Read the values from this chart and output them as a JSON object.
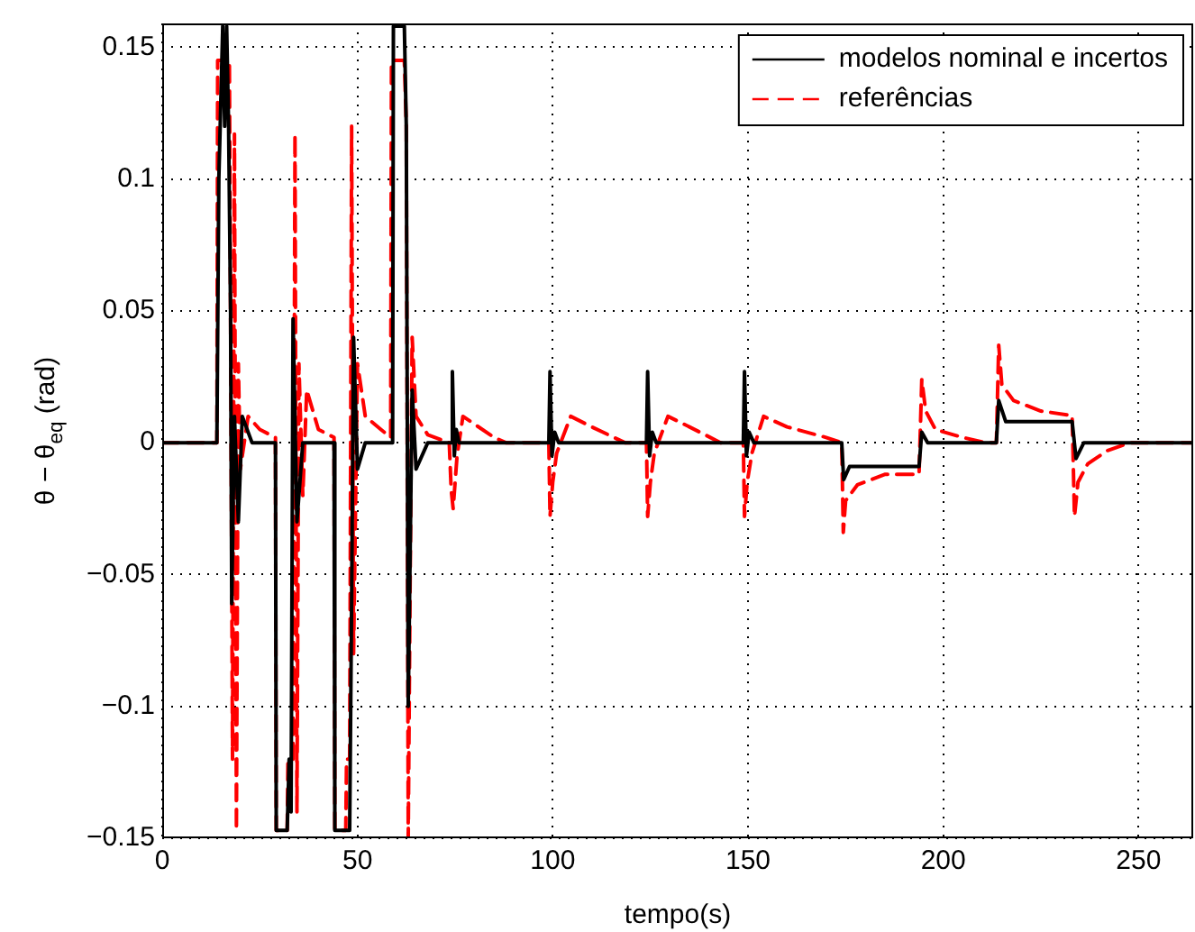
{
  "chart_data": {
    "type": "line",
    "xlabel": "tempo(s)",
    "ylabel": "θ − θ$_{eq}$ (rad)",
    "xlim": [
      0,
      264
    ],
    "ylim": [
      -0.15,
      0.159
    ],
    "xticks": [
      0,
      50,
      100,
      150,
      200,
      250
    ],
    "yticks": [
      {
        "value": -0.15,
        "label": "−0.15"
      },
      {
        "value": -0.1,
        "label": "−0.1"
      },
      {
        "value": -0.05,
        "label": "−0.05"
      },
      0,
      0.05,
      0.1,
      0.15
    ],
    "grid": true,
    "legend": "top right",
    "marker": "none",
    "series": [
      {
        "name": "modelos nominal e incertos",
        "color": "#000000",
        "line_style": "solid",
        "x": [
          0,
          14,
          14.5,
          15.5,
          16,
          16.5,
          17,
          17.5,
          17.8,
          18.5,
          19.5,
          20.5,
          23,
          29,
          29.2,
          32,
          32.5,
          33,
          33.5,
          34.5,
          36,
          44,
          44.2,
          48,
          48.5,
          49,
          50,
          52,
          59,
          59.2,
          62,
          62.5,
          63,
          64,
          65,
          68,
          74,
          74.3,
          74.8,
          75.3,
          76,
          99,
          99.3,
          99.8,
          100.5,
          101.5,
          124,
          124.3,
          124.8,
          125.5,
          126.5,
          148.8,
          149.1,
          149.6,
          150.3,
          151.5,
          174,
          174.5,
          176,
          193.8,
          194.5,
          196,
          213.6,
          214.2,
          216,
          233,
          234,
          236,
          264
        ],
        "values": [
          0,
          0,
          0.1,
          0.158,
          0.12,
          0.158,
          0.12,
          0.05,
          -0.061,
          0.01,
          -0.03,
          0.01,
          0,
          0,
          -0.147,
          -0.147,
          -0.12,
          -0.14,
          0.047,
          -0.03,
          0,
          0,
          -0.147,
          -0.147,
          -0.06,
          0.04,
          -0.01,
          0,
          0,
          0.158,
          0.158,
          0.12,
          -0.1,
          0.02,
          -0.01,
          0,
          0,
          0.027,
          -0.005,
          0.005,
          0,
          0,
          0.027,
          -0.005,
          0.004,
          0,
          0,
          0.027,
          -0.005,
          0.004,
          0,
          0,
          0.027,
          -0.005,
          0.004,
          0,
          0,
          -0.014,
          -0.009,
          -0.009,
          0.004,
          0,
          0,
          0.016,
          0.008,
          0.008,
          -0.006,
          0,
          0
        ]
      },
      {
        "name": "referências",
        "color": "#ff0000",
        "line_style": "dashed",
        "x": [
          0,
          14,
          14.2,
          17.2,
          17.5,
          18,
          18.5,
          19,
          19.5,
          20,
          22,
          25,
          29,
          29.2,
          32,
          32.2,
          33.5,
          34,
          34.5,
          35,
          36,
          37,
          40,
          44,
          44.2,
          47,
          47.2,
          48,
          48.5,
          49,
          50,
          52,
          56,
          58.5,
          58.7,
          62,
          62.5,
          63,
          63.5,
          64,
          65,
          68,
          73.5,
          74,
          74.5,
          75.5,
          77,
          80,
          85,
          88,
          99,
          99.3,
          100,
          101,
          104.6,
          110,
          118.5,
          124,
          124.3,
          125,
          126,
          129.5,
          135,
          143,
          148.8,
          149.1,
          149.8,
          151,
          154,
          160,
          170,
          174,
          174.4,
          175,
          178,
          185,
          193.8,
          194.5,
          195.5,
          198,
          205,
          210.7,
          213.6,
          214.2,
          215,
          218,
          225,
          233,
          233.6,
          234.5,
          237,
          242,
          247.7,
          264
        ],
        "values": [
          0,
          0,
          0.145,
          0.145,
          0.05,
          -0.12,
          0.117,
          -0.147,
          0.03,
          -0.01,
          0.01,
          0.005,
          0.002,
          -0.147,
          -0.147,
          -0.12,
          -0.12,
          0.117,
          -0.14,
          0.03,
          -0.02,
          0.02,
          0.005,
          0.002,
          -0.147,
          -0.147,
          -0.12,
          -0.12,
          0.12,
          -0.08,
          0.03,
          0.01,
          0.005,
          0.002,
          0.145,
          0.145,
          0.12,
          -0.15,
          -0.05,
          0.04,
          0.01,
          0.003,
          0,
          -0.018,
          -0.025,
          -0.005,
          0.01,
          0.007,
          0.002,
          0,
          0,
          -0.028,
          -0.015,
          -0.004,
          0.01,
          0.006,
          0,
          0,
          -0.028,
          -0.015,
          -0.004,
          0.01,
          0.006,
          0,
          0,
          -0.028,
          -0.015,
          -0.004,
          0.01,
          0.006,
          0.002,
          0,
          -0.034,
          -0.022,
          -0.016,
          -0.012,
          -0.012,
          0.024,
          0.012,
          0.005,
          0.002,
          0,
          0,
          0.037,
          0.022,
          0.016,
          0.012,
          0.0103,
          -0.028,
          -0.015,
          -0.008,
          -0.003,
          0,
          0
        ]
      }
    ]
  }
}
